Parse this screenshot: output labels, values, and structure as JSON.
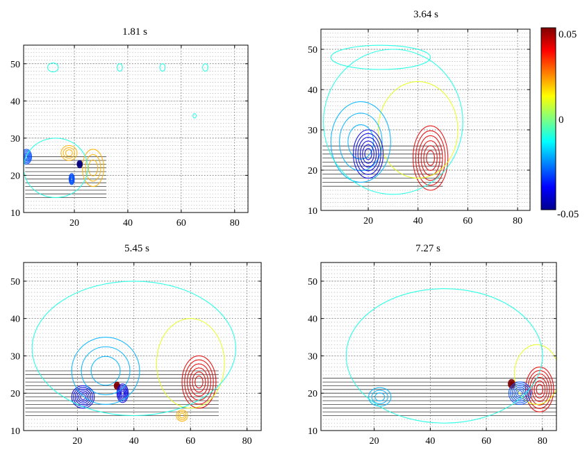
{
  "chart_data": {
    "type": "contour",
    "panels": [
      {
        "title": "1.81 s",
        "xlim": [
          1,
          85
        ],
        "ylim": [
          10,
          55
        ],
        "x_ticks": [
          20,
          40,
          60,
          80
        ],
        "y_ticks": [
          10,
          20,
          30,
          40,
          50
        ],
        "vector_region": {
          "x": [
            2,
            85
          ],
          "y": [
            10,
            55
          ]
        },
        "strong_flow_band": {
          "x": [
            3,
            32
          ],
          "y": [
            14,
            25
          ]
        },
        "contours": [
          {
            "cx": 27,
            "cy": 22,
            "rx": 4,
            "ry": 5,
            "value": 0.02
          },
          {
            "cx": 18,
            "cy": 26,
            "rx": 3,
            "ry": 2,
            "value": 0.02
          },
          {
            "cx": 22,
            "cy": 23,
            "rx": 1,
            "ry": 1,
            "value": -0.05
          },
          {
            "cx": 19,
            "cy": 19,
            "rx": 1,
            "ry": 1.5,
            "value": -0.03
          },
          {
            "cx": 2,
            "cy": 25,
            "rx": 2,
            "ry": 2,
            "value": -0.03
          },
          {
            "cx": 13,
            "cy": 22,
            "rx": 12,
            "ry": 8,
            "value": -0.01
          },
          {
            "cx": 12,
            "cy": 49,
            "rx": 2,
            "ry": 1.2,
            "value": -0.01
          },
          {
            "cx": 37,
            "cy": 49,
            "rx": 1,
            "ry": 1,
            "value": -0.01
          },
          {
            "cx": 53,
            "cy": 49,
            "rx": 1,
            "ry": 1,
            "value": -0.01
          },
          {
            "cx": 69,
            "cy": 49,
            "rx": 1,
            "ry": 1,
            "value": -0.01
          },
          {
            "cx": 65,
            "cy": 36,
            "rx": 0.6,
            "ry": 0.6,
            "value": -0.01
          }
        ]
      },
      {
        "title": "3.64 s",
        "xlim": [
          1,
          85
        ],
        "ylim": [
          10,
          55
        ],
        "x_ticks": [
          20,
          40,
          60,
          80
        ],
        "y_ticks": [
          10,
          20,
          30,
          40,
          50
        ],
        "vector_region": {
          "x": [
            2,
            85
          ],
          "y": [
            10,
            55
          ]
        },
        "strong_flow_band": {
          "x": [
            3,
            50
          ],
          "y": [
            16,
            26
          ]
        },
        "contours": [
          {
            "cx": 45,
            "cy": 23,
            "rx": 7,
            "ry": 8,
            "value": 0.04
          },
          {
            "cx": 40,
            "cy": 30,
            "rx": 16,
            "ry": 12,
            "value": 0.01
          },
          {
            "cx": 17,
            "cy": 27,
            "rx": 12,
            "ry": 10,
            "value": -0.02
          },
          {
            "cx": 20,
            "cy": 24,
            "rx": 6,
            "ry": 6,
            "value": -0.04
          },
          {
            "cx": 30,
            "cy": 32,
            "rx": 28,
            "ry": 18,
            "value": -0.01
          },
          {
            "cx": 25,
            "cy": 48,
            "rx": 20,
            "ry": 3,
            "value": -0.01
          }
        ]
      },
      {
        "title": "5.45 s",
        "xlim": [
          1,
          85
        ],
        "ylim": [
          10,
          55
        ],
        "x_ticks": [
          20,
          40,
          60,
          80
        ],
        "y_ticks": [
          10,
          20,
          30,
          40,
          50
        ],
        "vector_region": {
          "x": [
            2,
            85
          ],
          "y": [
            10,
            55
          ]
        },
        "strong_flow_band": {
          "x": [
            3,
            70
          ],
          "y": [
            14,
            26
          ]
        },
        "contours": [
          {
            "cx": 63,
            "cy": 23,
            "rx": 6,
            "ry": 7,
            "value": 0.04
          },
          {
            "cx": 60,
            "cy": 28,
            "rx": 12,
            "ry": 12,
            "value": 0.01
          },
          {
            "cx": 34,
            "cy": 22,
            "rx": 1,
            "ry": 1,
            "value": 0.05
          },
          {
            "cx": 36,
            "cy": 20,
            "rx": 2,
            "ry": 2.5,
            "value": -0.04
          },
          {
            "cx": 22,
            "cy": 19,
            "rx": 4,
            "ry": 3,
            "value": -0.04
          },
          {
            "cx": 30,
            "cy": 26,
            "rx": 12,
            "ry": 9,
            "value": -0.02
          },
          {
            "cx": 40,
            "cy": 32,
            "rx": 36,
            "ry": 18,
            "value": -0.01
          },
          {
            "cx": 57,
            "cy": 14,
            "rx": 2,
            "ry": 1.5,
            "value": 0.02
          }
        ]
      },
      {
        "title": "7.27 s",
        "xlim": [
          1,
          85
        ],
        "ylim": [
          10,
          55
        ],
        "x_ticks": [
          20,
          40,
          60,
          80
        ],
        "y_ticks": [
          10,
          20,
          30,
          40,
          50
        ],
        "vector_region": {
          "x": [
            2,
            85
          ],
          "y": [
            10,
            55
          ]
        },
        "strong_flow_band": {
          "x": [
            3,
            85
          ],
          "y": [
            14,
            24
          ]
        },
        "contours": [
          {
            "cx": 79,
            "cy": 21,
            "rx": 5,
            "ry": 6,
            "value": 0.04
          },
          {
            "cx": 78,
            "cy": 25,
            "rx": 8,
            "ry": 8,
            "value": 0.01
          },
          {
            "cx": 69,
            "cy": 22.5,
            "rx": 1.2,
            "ry": 1.2,
            "value": 0.05
          },
          {
            "cx": 72,
            "cy": 20,
            "rx": 4,
            "ry": 3,
            "value": -0.03
          },
          {
            "cx": 22,
            "cy": 19,
            "rx": 4,
            "ry": 2.5,
            "value": -0.02
          },
          {
            "cx": 45,
            "cy": 30,
            "rx": 35,
            "ry": 18,
            "value": -0.01
          }
        ]
      }
    ],
    "colorbar": {
      "min": -0.05,
      "max": 0.05,
      "tick_labels": [
        "0.05",
        "0",
        "-0.05"
      ],
      "colormap": "jet"
    }
  }
}
